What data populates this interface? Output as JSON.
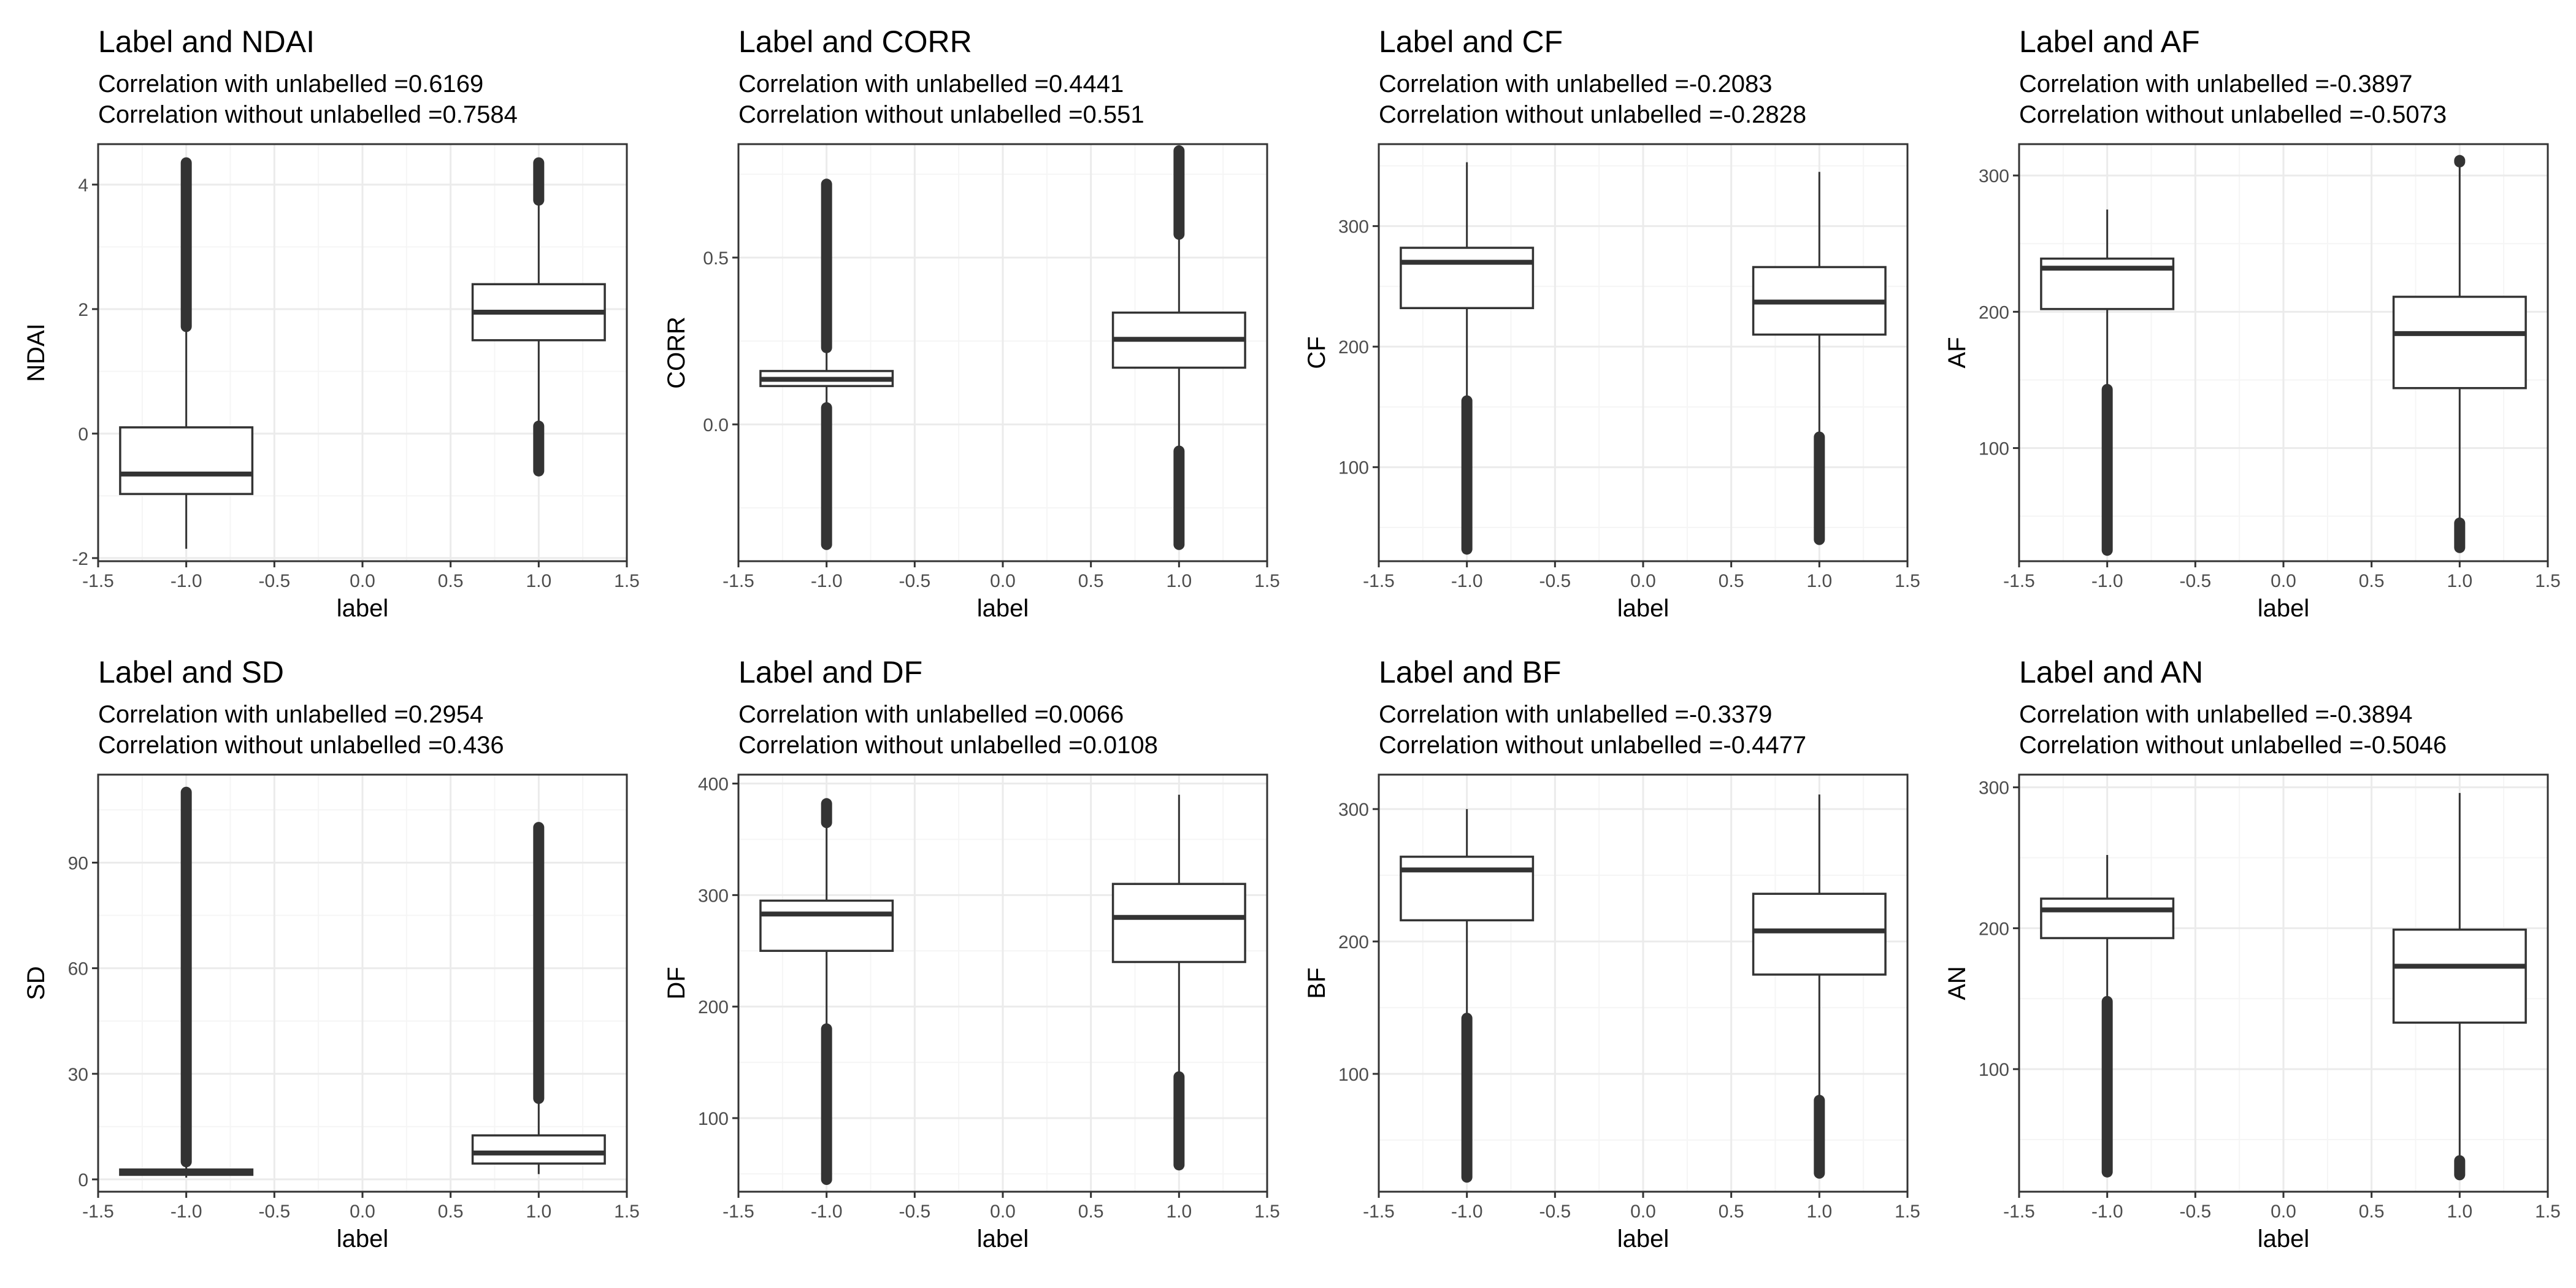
{
  "colors": {
    "grid_major": "#ebebeb",
    "grid_minor": "#f5f5f5",
    "panel_border": "#333333",
    "box": "#333333",
    "outlier": "#333333"
  },
  "chart_data": [
    {
      "type": "boxplot",
      "title": "Label and NDAI",
      "subtitle_lines": [
        "Correlation with unlabelled =0.6169",
        "Correlation without unlabelled =0.7584"
      ],
      "xlabel": "label",
      "ylabel": "NDAI",
      "xlim": [
        -1.5,
        1.5
      ],
      "xticks": [
        -1.5,
        -1.0,
        -0.5,
        0.0,
        0.5,
        1.0,
        1.5
      ],
      "xtick_labels": [
        "-1.5",
        "-1.0",
        "-0.5",
        "0.0",
        "0.5",
        "1.0",
        "1.5"
      ],
      "ylim": [
        -2.05,
        4.65
      ],
      "yticks": [
        -2,
        0,
        2,
        4
      ],
      "ytick_labels": [
        "-2",
        "0",
        "2",
        "4"
      ],
      "yminor": [
        -1,
        1,
        3
      ],
      "groups": [
        {
          "x": -1,
          "whisker_low": -1.85,
          "q1": -0.97,
          "median": -0.65,
          "q3": 0.1,
          "whisker_high": 1.72,
          "outliers_low": null,
          "outliers_high": [
            1.72,
            4.35
          ]
        },
        {
          "x": 1,
          "whisker_low": 0.12,
          "q1": 1.5,
          "median": 1.95,
          "q3": 2.4,
          "whisker_high": 3.75,
          "outliers_low": [
            -0.6,
            0.12
          ],
          "outliers_high": [
            3.75,
            4.35
          ]
        }
      ]
    },
    {
      "type": "boxplot",
      "title": "Label and CORR",
      "subtitle_lines": [
        "Correlation with unlabelled =0.4441",
        "Correlation without unlabelled =0.551"
      ],
      "xlabel": "label",
      "ylabel": "CORR",
      "xlim": [
        -1.5,
        1.5
      ],
      "xticks": [
        -1.5,
        -1.0,
        -0.5,
        0.0,
        0.5,
        1.0,
        1.5
      ],
      "xtick_labels": [
        "-1.5",
        "-1.0",
        "-0.5",
        "0.0",
        "0.5",
        "1.0",
        "1.5"
      ],
      "ylim": [
        -0.41,
        0.84
      ],
      "yticks": [
        0.0,
        0.5
      ],
      "ytick_labels": [
        "0.0",
        "0.5"
      ],
      "yminor": [
        -0.25,
        0.25,
        0.75
      ],
      "groups": [
        {
          "x": -1,
          "whisker_low": 0.05,
          "q1": 0.115,
          "median": 0.135,
          "q3": 0.16,
          "whisker_high": 0.23,
          "outliers_low": [
            -0.36,
            0.05
          ],
          "outliers_high": [
            0.23,
            0.72
          ]
        },
        {
          "x": 1,
          "whisker_low": -0.08,
          "q1": 0.17,
          "median": 0.255,
          "q3": 0.335,
          "whisker_high": 0.57,
          "outliers_low": [
            -0.36,
            -0.08
          ],
          "outliers_high": [
            0.57,
            0.82
          ]
        }
      ]
    },
    {
      "type": "boxplot",
      "title": "Label and CF",
      "subtitle_lines": [
        "Correlation with unlabelled =-0.2083",
        "Correlation without unlabelled =-0.2828"
      ],
      "xlabel": "label",
      "ylabel": "CF",
      "xlim": [
        -1.5,
        1.5
      ],
      "xticks": [
        -1.5,
        -1.0,
        -0.5,
        0.0,
        0.5,
        1.0,
        1.5
      ],
      "xtick_labels": [
        "-1.5",
        "-1.0",
        "-0.5",
        "0.0",
        "0.5",
        "1.0",
        "1.5"
      ],
      "ylim": [
        22,
        368
      ],
      "yticks": [
        100,
        200,
        300
      ],
      "ytick_labels": [
        "100",
        "200",
        "300"
      ],
      "yminor": [
        50,
        150,
        250,
        350
      ],
      "groups": [
        {
          "x": -1,
          "whisker_low": 155,
          "q1": 232,
          "median": 270,
          "q3": 282,
          "whisker_high": 353,
          "outliers_low": [
            32,
            155
          ],
          "outliers_high": null
        },
        {
          "x": 1,
          "whisker_low": 125,
          "q1": 210,
          "median": 237,
          "q3": 266,
          "whisker_high": 345,
          "outliers_low": [
            40,
            125
          ],
          "outliers_high": null
        }
      ]
    },
    {
      "type": "boxplot",
      "title": "Label and AF",
      "subtitle_lines": [
        "Correlation with unlabelled =-0.3897",
        "Correlation without unlabelled =-0.5073"
      ],
      "xlabel": "label",
      "ylabel": "AF",
      "xlim": [
        -1.5,
        1.5
      ],
      "xticks": [
        -1.5,
        -1.0,
        -0.5,
        0.0,
        0.5,
        1.0,
        1.5
      ],
      "xtick_labels": [
        "-1.5",
        "-1.0",
        "-0.5",
        "0.0",
        "0.5",
        "1.0",
        "1.5"
      ],
      "ylim": [
        17,
        323
      ],
      "yticks": [
        100,
        200,
        300
      ],
      "ytick_labels": [
        "100",
        "200",
        "300"
      ],
      "yminor": [
        50,
        150,
        250
      ],
      "groups": [
        {
          "x": -1,
          "whisker_low": 143,
          "q1": 202,
          "median": 232,
          "q3": 239,
          "whisker_high": 275,
          "outliers_low": [
            25,
            143
          ],
          "outliers_high": null
        },
        {
          "x": 1,
          "whisker_low": 45,
          "q1": 144,
          "median": 184,
          "q3": 211,
          "whisker_high": 310,
          "outliers_low": [
            27,
            45
          ],
          "outliers_high": [
            310,
            311
          ]
        }
      ]
    },
    {
      "type": "boxplot",
      "title": "Label and SD",
      "subtitle_lines": [
        "Correlation with unlabelled =0.2954",
        "Correlation without unlabelled =0.436"
      ],
      "xlabel": "label",
      "ylabel": "SD",
      "xlim": [
        -1.5,
        1.5
      ],
      "xticks": [
        -1.5,
        -1.0,
        -0.5,
        0.0,
        0.5,
        1.0,
        1.5
      ],
      "xtick_labels": [
        "-1.5",
        "-1.0",
        "-0.5",
        "0.0",
        "0.5",
        "1.0",
        "1.5"
      ],
      "ylim": [
        -3.5,
        115
      ],
      "yticks": [
        0,
        30,
        60,
        90
      ],
      "ytick_labels": [
        "0",
        "30",
        "60",
        "90"
      ],
      "yminor": [
        15,
        45,
        75,
        105
      ],
      "groups": [
        {
          "x": -1,
          "whisker_low": 0.5,
          "q1": 1.3,
          "median": 2.0,
          "q3": 2.8,
          "whisker_high": 5,
          "outliers_low": null,
          "outliers_high": [
            5,
            110
          ]
        },
        {
          "x": 1,
          "whisker_low": 1.5,
          "q1": 4.5,
          "median": 7.5,
          "q3": 12.5,
          "whisker_high": 23,
          "outliers_low": null,
          "outliers_high": [
            23,
            100
          ]
        }
      ]
    },
    {
      "type": "boxplot",
      "title": "Label and DF",
      "subtitle_lines": [
        "Correlation with unlabelled =0.0066",
        "Correlation without unlabelled =0.0108"
      ],
      "xlabel": "label",
      "ylabel": "DF",
      "xlim": [
        -1.5,
        1.5
      ],
      "xticks": [
        -1.5,
        -1.0,
        -0.5,
        0.0,
        0.5,
        1.0,
        1.5
      ],
      "xtick_labels": [
        "-1.5",
        "-1.0",
        "-0.5",
        "0.0",
        "0.5",
        "1.0",
        "1.5"
      ],
      "ylim": [
        34,
        408
      ],
      "yticks": [
        100,
        200,
        300,
        400
      ],
      "ytick_labels": [
        "100",
        "200",
        "300",
        "400"
      ],
      "yminor": [
        50,
        150,
        250,
        350
      ],
      "groups": [
        {
          "x": -1,
          "whisker_low": 180,
          "q1": 250,
          "median": 283,
          "q3": 295,
          "whisker_high": 365,
          "outliers_low": [
            45,
            180
          ],
          "outliers_high": [
            365,
            382
          ]
        },
        {
          "x": 1,
          "whisker_low": 137,
          "q1": 240,
          "median": 280,
          "q3": 310,
          "whisker_high": 390,
          "outliers_low": [
            58,
            137
          ],
          "outliers_high": null
        }
      ]
    },
    {
      "type": "boxplot",
      "title": "Label and BF",
      "subtitle_lines": [
        "Correlation with unlabelled =-0.3379",
        "Correlation without unlabelled =-0.4477"
      ],
      "xlabel": "label",
      "ylabel": "BF",
      "xlim": [
        -1.5,
        1.5
      ],
      "xticks": [
        -1.5,
        -1.0,
        -0.5,
        0.0,
        0.5,
        1.0,
        1.5
      ],
      "xtick_labels": [
        "-1.5",
        "-1.0",
        "-0.5",
        "0.0",
        "0.5",
        "1.0",
        "1.5"
      ],
      "ylim": [
        11,
        326
      ],
      "yticks": [
        100,
        200,
        300
      ],
      "ytick_labels": [
        "100",
        "200",
        "300"
      ],
      "yminor": [
        50,
        150,
        250
      ],
      "groups": [
        {
          "x": -1,
          "whisker_low": 142,
          "q1": 216,
          "median": 254,
          "q3": 264,
          "whisker_high": 300,
          "outliers_low": [
            22,
            142
          ],
          "outliers_high": null
        },
        {
          "x": 1,
          "whisker_low": 80,
          "q1": 175,
          "median": 208,
          "q3": 236,
          "whisker_high": 311,
          "outliers_low": [
            25,
            80
          ],
          "outliers_high": null
        }
      ]
    },
    {
      "type": "boxplot",
      "title": "Label and AN",
      "subtitle_lines": [
        "Correlation with unlabelled =-0.3894",
        "Correlation without unlabelled =-0.5046"
      ],
      "xlabel": "label",
      "ylabel": "AN",
      "xlim": [
        -1.5,
        1.5
      ],
      "xticks": [
        -1.5,
        -1.0,
        -0.5,
        0.0,
        0.5,
        1.0,
        1.5
      ],
      "xtick_labels": [
        "-1.5",
        "-1.0",
        "-0.5",
        "0.0",
        "0.5",
        "1.0",
        "1.5"
      ],
      "ylim": [
        13,
        309
      ],
      "yticks": [
        100,
        200,
        300
      ],
      "ytick_labels": [
        "100",
        "200",
        "300"
      ],
      "yminor": [
        50,
        150,
        250
      ],
      "groups": [
        {
          "x": -1,
          "whisker_low": 148,
          "q1": 193,
          "median": 213,
          "q3": 221,
          "whisker_high": 252,
          "outliers_low": [
            27,
            148
          ],
          "outliers_high": null
        },
        {
          "x": 1,
          "whisker_low": 35,
          "q1": 133,
          "median": 173,
          "q3": 199,
          "whisker_high": 296,
          "outliers_low": [
            25,
            35
          ],
          "outliers_high": null
        }
      ]
    }
  ]
}
